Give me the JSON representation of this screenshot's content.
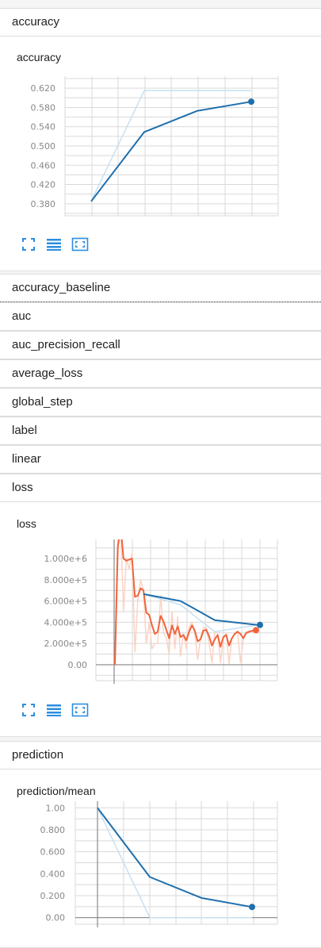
{
  "sections": {
    "accuracy": "accuracy",
    "accuracy_baseline": "accuracy_baseline",
    "auc": "auc",
    "auc_precision_recall": "auc_precision_recall",
    "average_loss": "average_loss",
    "global_step": "global_step",
    "label": "label",
    "linear": "linear",
    "loss": "loss",
    "prediction": "prediction"
  },
  "toolbar_icons": [
    "fit-to-screen-icon",
    "data-table-icon",
    "expand-chart-icon"
  ],
  "colors": {
    "blue": "#1f6fad",
    "blue_light": "#c6e0f0",
    "orange": "#f0643c",
    "orange_light": "#fbd3c4",
    "grid": "#d9d9d9",
    "tick": "#888888",
    "icon": "#2b8de0"
  },
  "chart_data": [
    {
      "type": "line",
      "title": "accuracy",
      "yticks": [
        "0.620",
        "0.580",
        "0.540",
        "0.500",
        "0.460",
        "0.420",
        "0.380"
      ],
      "ylim": [
        0.355,
        0.645
      ],
      "xlim": [
        0,
        1
      ],
      "series": [
        {
          "role": "smoothed",
          "x": [
            0,
            0.33,
            0.6,
            1.0
          ],
          "values": [
            0.385,
            0.529,
            0.573,
            0.592
          ]
        },
        {
          "role": "raw",
          "x": [
            0,
            0.33,
            1.0
          ],
          "values": [
            0.385,
            0.615,
            0.615
          ]
        }
      ]
    },
    {
      "type": "line",
      "title": "loss",
      "yticks": [
        "1.000e+6",
        "8.000e+5",
        "6.000e+5",
        "4.000e+5",
        "2.000e+5",
        "0.00"
      ],
      "ylim": [
        -150000,
        1180000
      ],
      "xlim": [
        0,
        1
      ],
      "series": [
        {
          "role": "smoothed_dense",
          "x": [
            0,
            0.02,
            0.04,
            0.06,
            0.08,
            0.1,
            0.12,
            0.14,
            0.16,
            0.18,
            0.2,
            0.22,
            0.24,
            0.26,
            0.28,
            0.3,
            0.32,
            0.34,
            0.36,
            0.38,
            0.4,
            0.42,
            0.44,
            0.46,
            0.48,
            0.5,
            0.52,
            0.54,
            0.56,
            0.58,
            0.6,
            0.62,
            0.64,
            0.66,
            0.68,
            0.7,
            0.72,
            0.74,
            0.76,
            0.78,
            0.8,
            0.82,
            0.84,
            0.86,
            0.88,
            0.9,
            0.92,
            0.94,
            0.96,
            0.98,
            1.0
          ],
          "values": [
            0,
            1100000,
            1300000,
            1000000,
            980000,
            990000,
            1000000,
            640000,
            650000,
            720000,
            700000,
            490000,
            470000,
            370000,
            290000,
            310000,
            460000,
            410000,
            330000,
            250000,
            370000,
            290000,
            360000,
            260000,
            280000,
            230000,
            310000,
            370000,
            320000,
            220000,
            240000,
            320000,
            330000,
            270000,
            180000,
            240000,
            280000,
            170000,
            260000,
            280000,
            180000,
            250000,
            290000,
            310000,
            290000,
            250000,
            300000,
            310000,
            320000,
            320000,
            325000
          ]
        },
        {
          "role": "raw_dense",
          "x": [
            0,
            0.02,
            0.04,
            0.06,
            0.08,
            0.1,
            0.12,
            0.14,
            0.16,
            0.18,
            0.2,
            0.22,
            0.24,
            0.26,
            0.28,
            0.3,
            0.32,
            0.34,
            0.36,
            0.38,
            0.4,
            0.42,
            0.44,
            0.46,
            0.48,
            0.5,
            0.52,
            0.54,
            0.56,
            0.58,
            0.6,
            0.62,
            0.64,
            0.66,
            0.68,
            0.7,
            0.72,
            0.74,
            0.76,
            0.78,
            0.8,
            0.82,
            0.84,
            0.86,
            0.88,
            0.9,
            0.92,
            0.94,
            0.96,
            0.98,
            1.0
          ],
          "values": [
            0,
            1250000,
            1300000,
            500000,
            1000000,
            900000,
            1050000,
            120000,
            600000,
            800000,
            700000,
            200000,
            400000,
            150000,
            200000,
            200000,
            650000,
            300000,
            250000,
            100000,
            500000,
            150000,
            450000,
            80000,
            300000,
            150000,
            350000,
            400000,
            300000,
            50000,
            250000,
            350000,
            350000,
            200000,
            20000,
            300000,
            300000,
            20000,
            250000,
            300000,
            10000,
            250000,
            300000,
            320000,
            20000,
            250000,
            300000,
            320000,
            310000,
            300000,
            300000
          ]
        },
        {
          "role": "smoothed_coarse",
          "x": [
            0.2,
            0.46,
            0.7,
            1.0
          ],
          "values": [
            665000,
            600000,
            420000,
            375000
          ]
        },
        {
          "role": "raw_coarse",
          "x": [
            0.2,
            0.46,
            0.7,
            1.0
          ],
          "values": [
            665000,
            565000,
            310000,
            375000
          ]
        }
      ]
    },
    {
      "type": "line",
      "title": "prediction/mean",
      "yticks": [
        "1.00",
        "0.800",
        "0.600",
        "0.400",
        "0.200",
        "0.00"
      ],
      "ylim": [
        -0.06,
        1.06
      ],
      "xlim": [
        0,
        1
      ],
      "series": [
        {
          "role": "smoothed",
          "x": [
            0,
            0.34,
            0.66,
            1.0
          ],
          "values": [
            1.0,
            0.37,
            0.18,
            0.097
          ]
        },
        {
          "role": "raw",
          "x": [
            0,
            0.34,
            0.66,
            1.0
          ],
          "values": [
            1.0,
            0.0,
            0.0,
            0.0
          ]
        }
      ]
    }
  ]
}
